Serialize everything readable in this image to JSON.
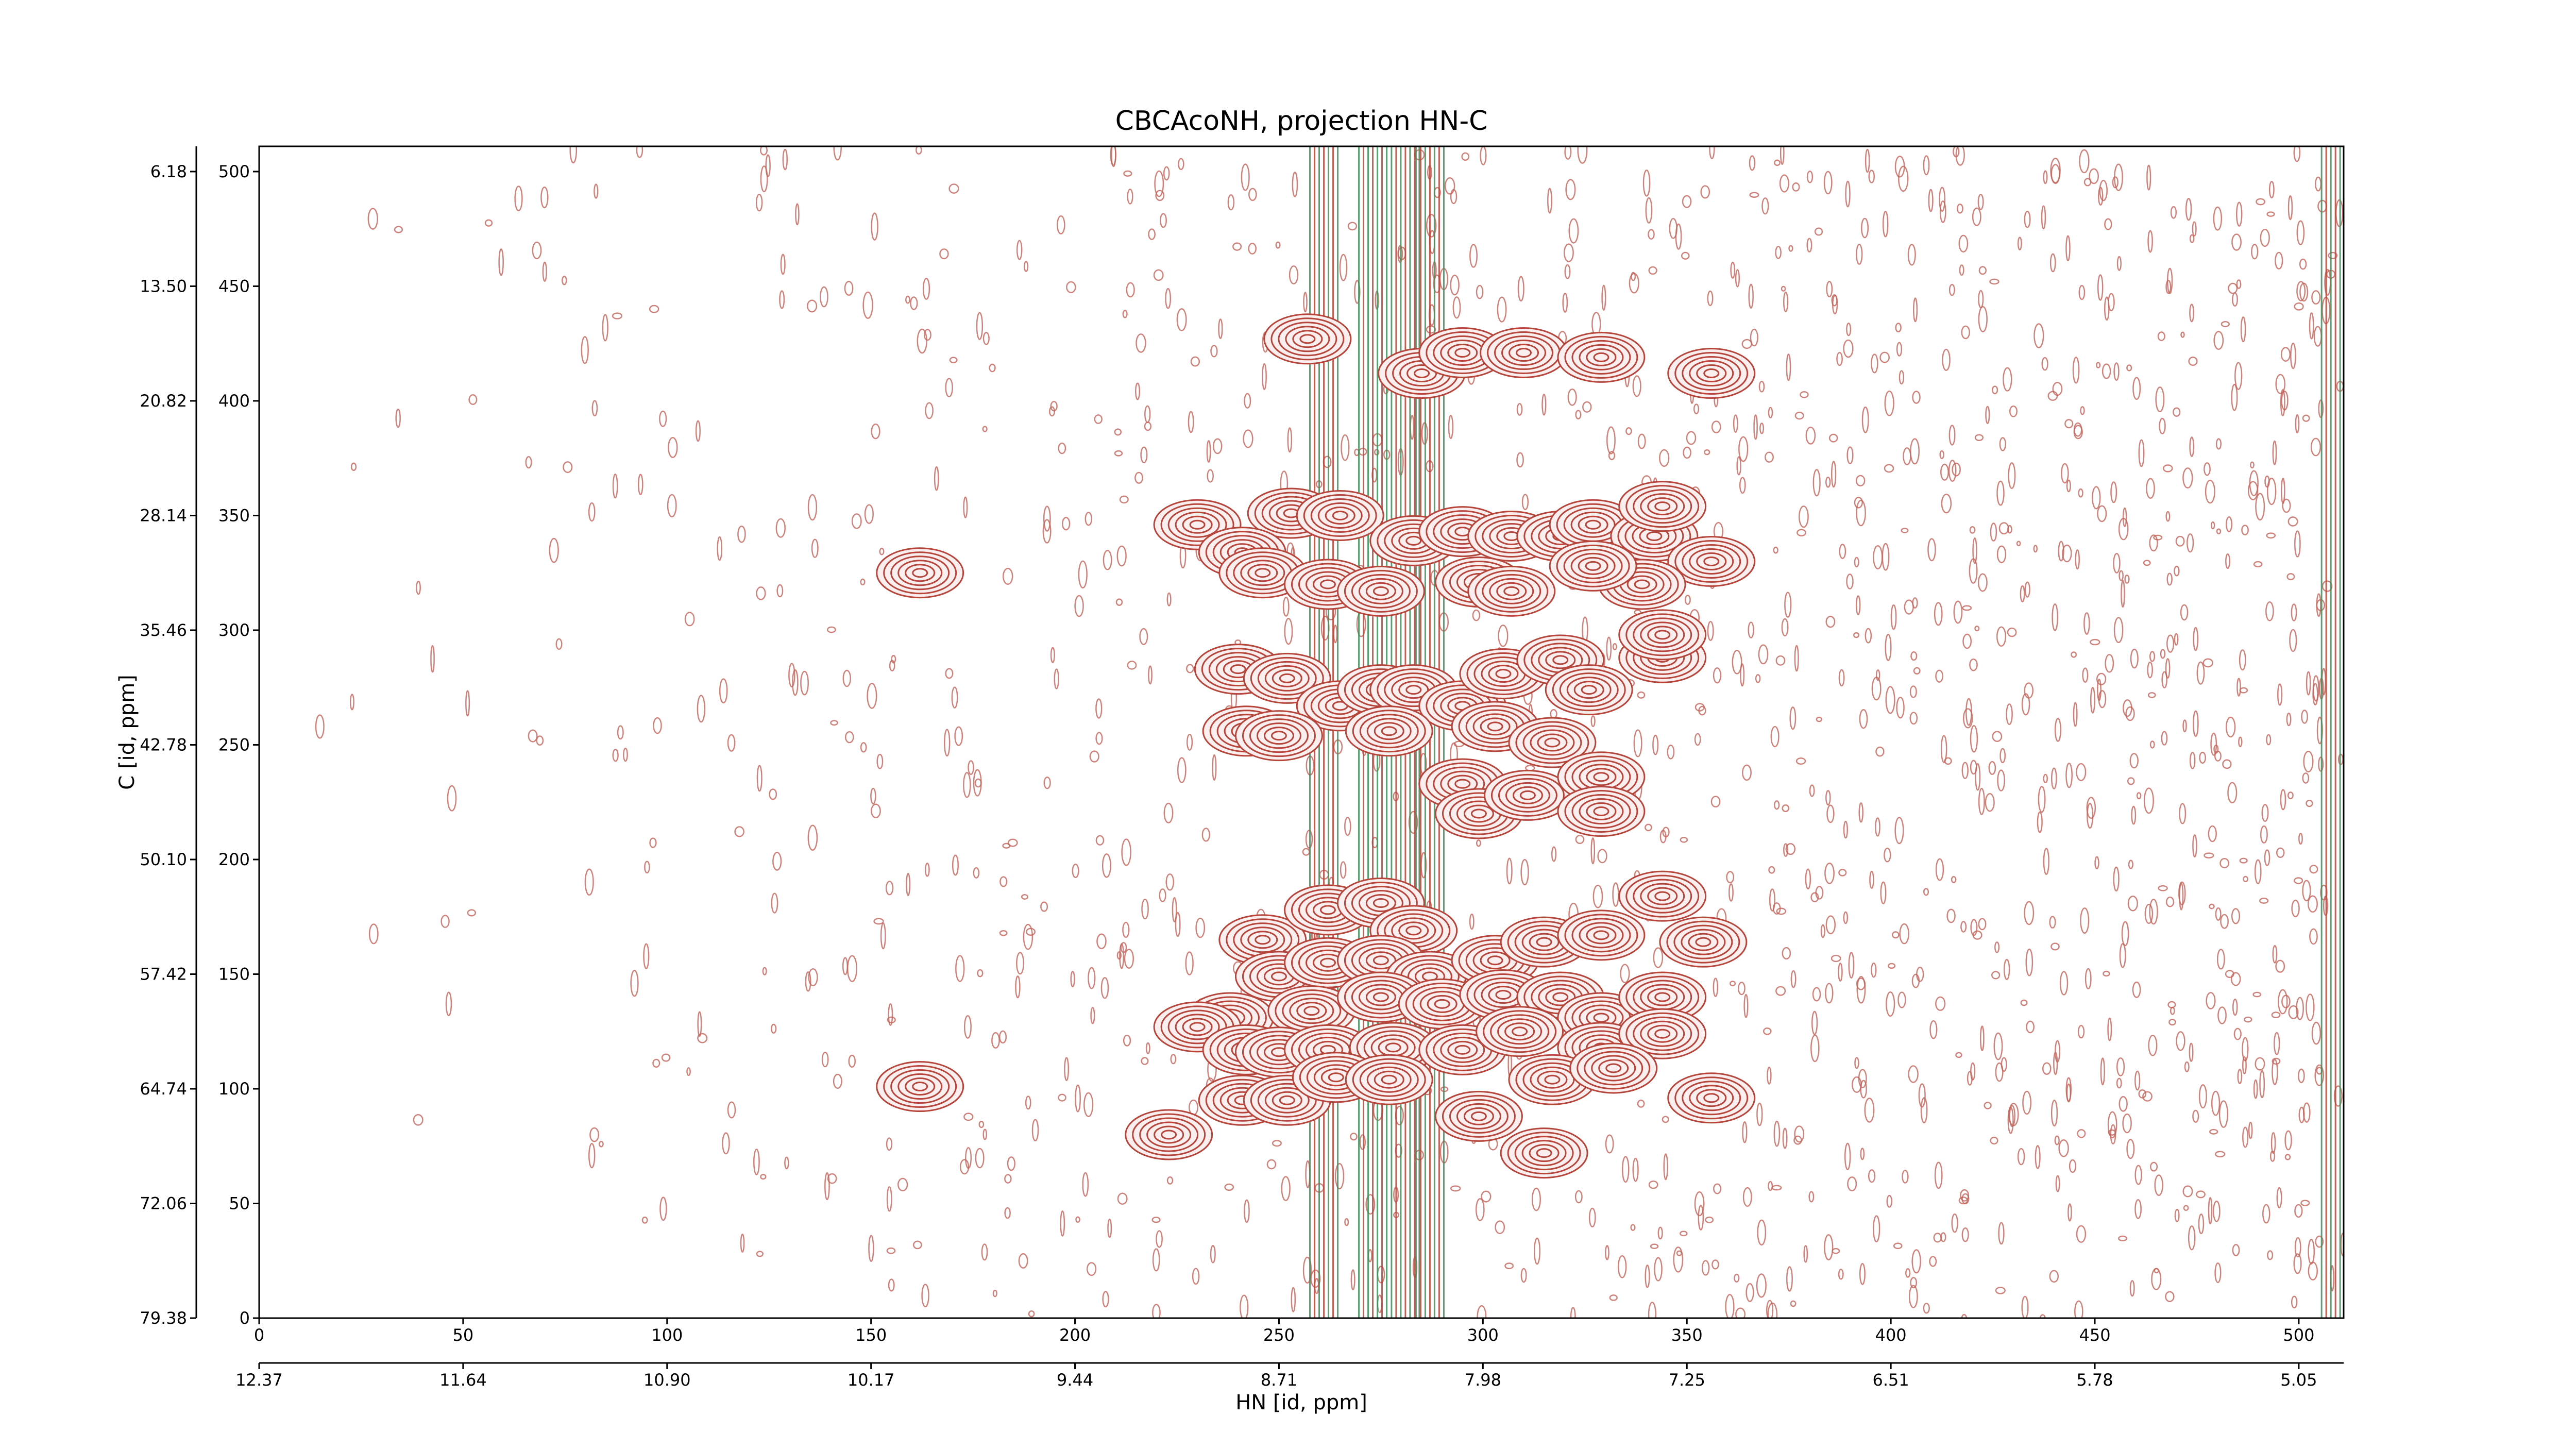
{
  "chart_data": {
    "type": "contour",
    "title": "CBCAcoNH, projection HN-C",
    "xlabel": "HN [id, ppm]",
    "ylabel": "C [id, ppm]",
    "xlim": [
      0,
      511
    ],
    "ylim": [
      0,
      511
    ],
    "xticks": [
      0,
      50,
      100,
      150,
      200,
      250,
      300,
      350,
      400,
      450,
      500
    ],
    "yticks": [
      0,
      50,
      100,
      150,
      200,
      250,
      300,
      350,
      400,
      450,
      500
    ],
    "x2ticks": [
      {
        "value": 0,
        "label": "12.37"
      },
      {
        "value": 50,
        "label": "11.64"
      },
      {
        "value": 100,
        "label": "10.90"
      },
      {
        "value": 150,
        "label": "10.17"
      },
      {
        "value": 200,
        "label": "9.44"
      },
      {
        "value": 250,
        "label": "8.71"
      },
      {
        "value": 300,
        "label": "7.98"
      },
      {
        "value": 350,
        "label": "7.25"
      },
      {
        "value": 400,
        "label": "6.51"
      },
      {
        "value": 450,
        "label": "5.78"
      },
      {
        "value": 500,
        "label": "5.05"
      }
    ],
    "y2ticks": [
      {
        "value": 0,
        "label": "79.38"
      },
      {
        "value": 50,
        "label": "72.06"
      },
      {
        "value": 100,
        "label": "64.74"
      },
      {
        "value": 150,
        "label": "57.42"
      },
      {
        "value": 200,
        "label": "50.10"
      },
      {
        "value": 250,
        "label": "42.78"
      },
      {
        "value": 300,
        "label": "35.46"
      },
      {
        "value": 350,
        "label": "28.14"
      },
      {
        "value": 400,
        "label": "20.82"
      },
      {
        "value": 450,
        "label": "13.50"
      },
      {
        "value": 500,
        "label": "6.18"
      }
    ],
    "series": [
      {
        "color": "#b5453a",
        "x": [
          257,
          285,
          295,
          310,
          329,
          356,
          230,
          253,
          265,
          241,
          246,
          262,
          275,
          283,
          295,
          307,
          319,
          327,
          342,
          344,
          356,
          339,
          327,
          299,
          162,
          240,
          252,
          265,
          275,
          283,
          295,
          305,
          319,
          326,
          344,
          344,
          307,
          242,
          250,
          277,
          303,
          317,
          295,
          299,
          311,
          329,
          329,
          246,
          262,
          275,
          283,
          250,
          262,
          275,
          287,
          303,
          315,
          329,
          344,
          354,
          238,
          258,
          275,
          290,
          305,
          319,
          329,
          344,
          230,
          242,
          250,
          262,
          278,
          295,
          309,
          329,
          344,
          241,
          252,
          264,
          277,
          299,
          317,
          332,
          356,
          162,
          315,
          223
        ],
        "values": [
          427,
          412,
          421,
          421,
          419,
          412,
          346,
          351,
          350,
          334,
          325,
          320,
          317,
          339,
          343,
          341,
          341,
          346,
          341,
          354,
          330,
          320,
          328,
          321,
          325,
          283,
          279,
          267,
          274,
          274,
          267,
          281,
          287,
          274,
          288,
          298,
          317,
          256,
          254,
          256,
          258,
          251,
          233,
          220,
          228,
          236,
          221,
          165,
          178,
          181,
          169,
          149,
          155,
          156,
          149,
          156,
          164,
          167,
          184,
          164,
          131,
          134,
          140,
          137,
          141,
          140,
          131,
          140,
          127,
          117,
          116,
          117,
          118,
          117,
          125,
          118,
          124,
          95,
          95,
          105,
          104,
          88,
          104,
          109,
          96,
          101,
          72,
          80
        ]
      },
      {
        "color": "#3d8f5a",
        "x": [
          261,
          273,
          281,
          287,
          509
        ]
      }
    ]
  }
}
